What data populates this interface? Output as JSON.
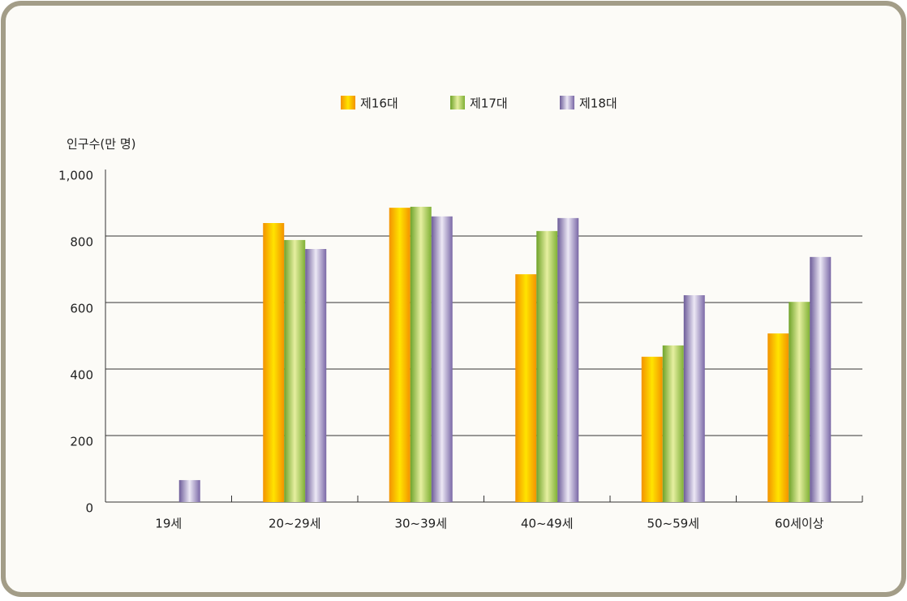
{
  "chart_data": {
    "type": "bar",
    "y_label": "인구수(만 명)",
    "categories": [
      "19세",
      "20~29세",
      "30~39세",
      "40~49세",
      "50~59세",
      "60세이상"
    ],
    "series": [
      {
        "name": "제16대",
        "color": "#f7a600",
        "values": [
          null,
          839,
          885,
          685,
          437,
          507
        ]
      },
      {
        "name": "제17대",
        "color": "#8cbd3f",
        "values": [
          null,
          788,
          888,
          815,
          471,
          602
        ]
      },
      {
        "name": "제18대",
        "color": "#8a78b0",
        "values": [
          66,
          761,
          859,
          854,
          622,
          737
        ]
      }
    ],
    "ylim": [
      0,
      1000
    ],
    "yticks": [
      0,
      200,
      400,
      600,
      800,
      {
        "value": 1000,
        "label": "1,000"
      }
    ],
    "grid": true,
    "legend": "top"
  }
}
